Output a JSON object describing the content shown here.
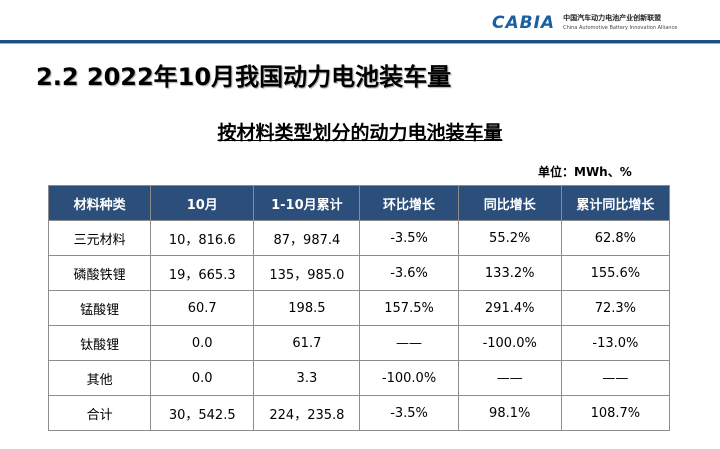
{
  "header": {
    "logo_mark": "CABIA",
    "org_cn": "中国汽车动力电池产业创新联盟",
    "org_en": "China Automotive Battery Innovation Alliance"
  },
  "section_title": "2.2 2022年10月我国动力电池装车量",
  "table_title": "按材料类型划分的动力电池装车量",
  "unit": "单位：MWh、%",
  "table": {
    "headers": [
      "材料种类",
      "10月",
      "1-10月累计",
      "环比增长",
      "同比增长",
      "累计同比增长"
    ],
    "rows": [
      [
        "三元材料",
        "10，816.6",
        "87，987.4",
        "-3.5%",
        "55.2%",
        "62.8%"
      ],
      [
        "磷酸铁锂",
        "19，665.3",
        "135，985.0",
        "-3.6%",
        "133.2%",
        "155.6%"
      ],
      [
        "锰酸锂",
        "60.7",
        "198.5",
        "157.5%",
        "291.4%",
        "72.3%"
      ],
      [
        "钛酸锂",
        "0.0",
        "61.7",
        "——",
        "-100.0%",
        "-13.0%"
      ],
      [
        "其他",
        "0.0",
        "3.3",
        "-100.0%",
        "——",
        "——"
      ],
      [
        "合计",
        "30，542.5",
        "224，235.8",
        "-3.5%",
        "98.1%",
        "108.7%"
      ]
    ]
  },
  "colors": {
    "header_bg": "#2c4e7a",
    "rule": "#1b4f86",
    "logo": "#1a5fa0"
  }
}
